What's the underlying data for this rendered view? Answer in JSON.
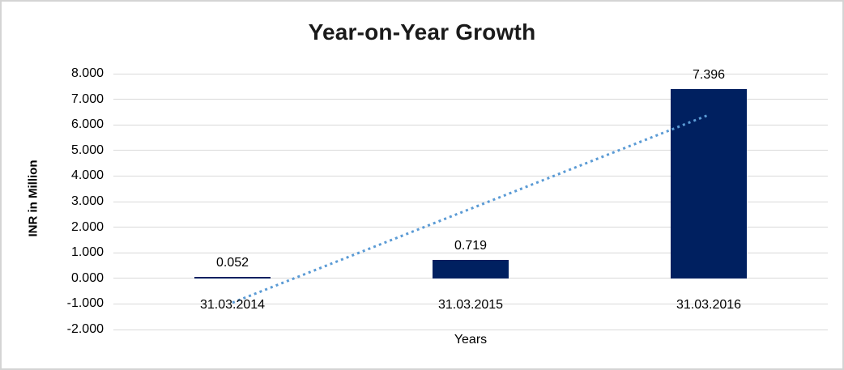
{
  "frame": {
    "background": "#FFFFFF",
    "border_color": "#D4D4D4"
  },
  "chart_data": {
    "type": "bar",
    "title": "Year-on-Year Growth",
    "xlabel": "Years",
    "ylabel": "INR in Million",
    "categories": [
      "31.03.2014",
      "31.03.2015",
      "31.03.2016"
    ],
    "values": [
      0.052,
      0.719,
      7.396
    ],
    "data_labels": [
      "0.052",
      "0.719",
      "7.396"
    ],
    "points": [
      {
        "category": "31.03.2014",
        "value": 0.052,
        "label": "0.052"
      },
      {
        "category": "31.03.2015",
        "value": 0.719,
        "label": "0.719"
      },
      {
        "category": "31.03.2016",
        "value": 7.396,
        "label": "7.396"
      }
    ],
    "ylim": [
      -2,
      8
    ],
    "ytick_step": 1,
    "yticks": [
      {
        "value": 8,
        "label": "8.000"
      },
      {
        "value": 7,
        "label": "7.000"
      },
      {
        "value": 6,
        "label": "6.000"
      },
      {
        "value": 5,
        "label": "5.000"
      },
      {
        "value": 4,
        "label": "4.000"
      },
      {
        "value": 3,
        "label": "3.000"
      },
      {
        "value": 2,
        "label": "2.000"
      },
      {
        "value": 1,
        "label": "1.000"
      },
      {
        "value": 0,
        "label": "0.000"
      },
      {
        "value": -1,
        "label": "-1.000"
      },
      {
        "value": -2,
        "label": "-2.000"
      }
    ],
    "grid": true,
    "legend": false,
    "bar_color": "#002060",
    "gridline_color": "#D9D9D9",
    "text_color": "#000000",
    "trendline": {
      "type": "linear",
      "style": "dotted",
      "color": "#5B9BD5",
      "start_value": -0.95,
      "end_value": 6.39
    }
  }
}
